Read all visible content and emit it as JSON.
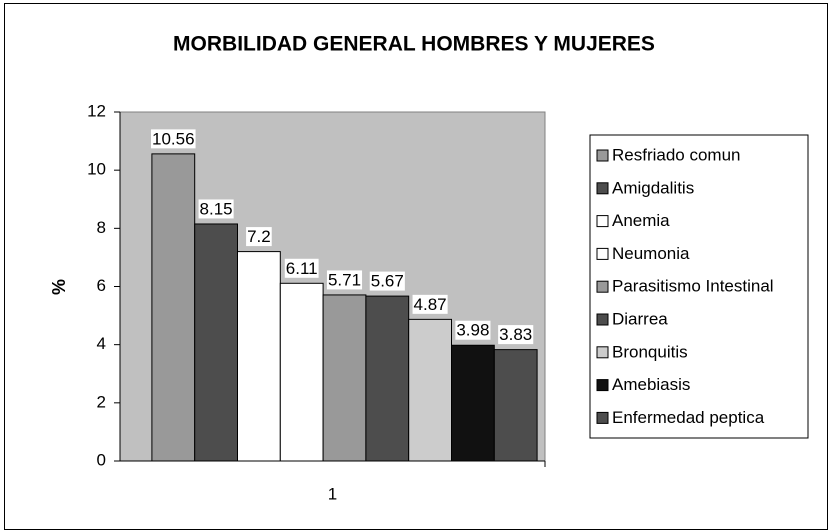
{
  "chart_data": {
    "type": "bar",
    "title": "MORBILIDAD GENERAL HOMBRES Y MUJERES",
    "y_label": "%",
    "categories": [
      "1"
    ],
    "series": [
      {
        "name": "Resfriado comun",
        "color": "#999999",
        "values": [
          10.56
        ]
      },
      {
        "name": "Amigdalitis",
        "color": "#4d4d4d",
        "values": [
          8.15
        ]
      },
      {
        "name": "Anemia",
        "color": "#ffffff",
        "values": [
          7.2
        ]
      },
      {
        "name": "Neumonia",
        "color": "#ffffff",
        "values": [
          6.11
        ]
      },
      {
        "name": "Parasitismo Intestinal",
        "color": "#999999",
        "values": [
          5.71
        ]
      },
      {
        "name": "Diarrea",
        "color": "#4d4d4d",
        "values": [
          5.67
        ]
      },
      {
        "name": "Bronquitis",
        "color": "#cccccc",
        "values": [
          4.87
        ]
      },
      {
        "name": "Amebiasis",
        "color": "#111111",
        "values": [
          3.98
        ]
      },
      {
        "name": "Enfermedad peptica",
        "color": "#4d4d4d",
        "values": [
          3.83
        ]
      }
    ],
    "ylim": [
      0,
      12
    ],
    "yticks": [
      0,
      2,
      4,
      6,
      8,
      10,
      12
    ],
    "plot_background": "#c0c0c0",
    "legend": "right"
  }
}
